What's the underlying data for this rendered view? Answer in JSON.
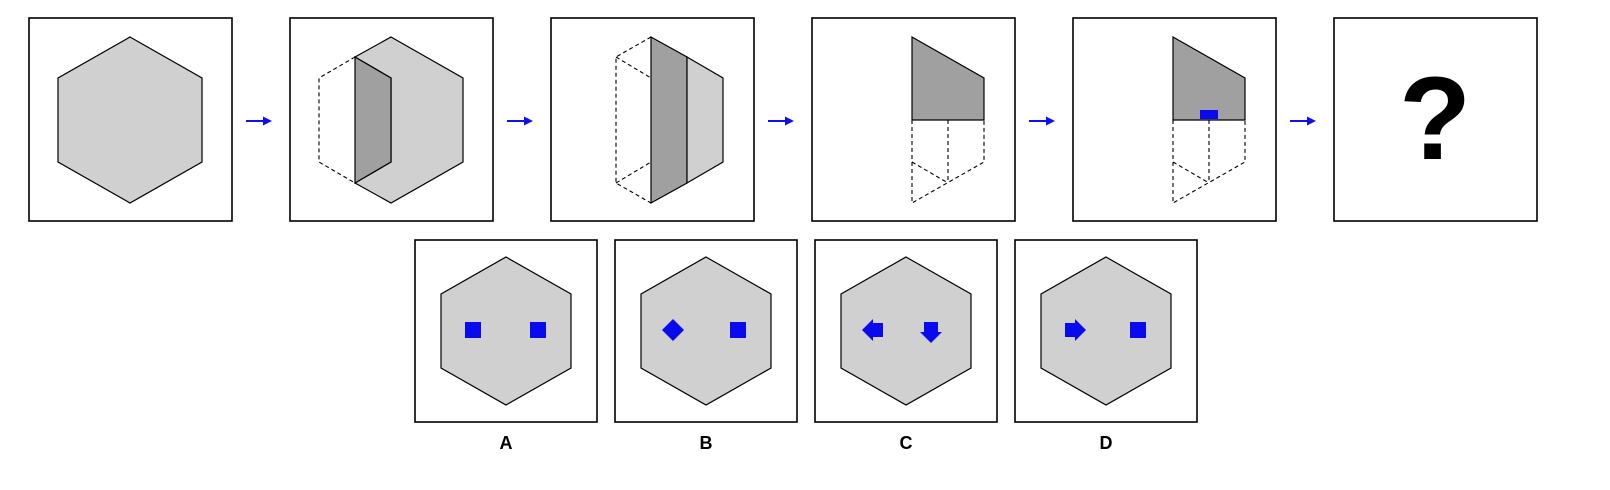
{
  "sequence": {
    "question_mark": "?"
  },
  "options": [
    {
      "label": "A",
      "left_mark": "square",
      "right_mark": "square"
    },
    {
      "label": "B",
      "left_mark": "diamond",
      "right_mark": "square"
    },
    {
      "label": "C",
      "left_mark": "arrow-left",
      "right_mark": "arrow-down"
    },
    {
      "label": "D",
      "left_mark": "arrow-right",
      "right_mark": "square"
    }
  ],
  "colors": {
    "face_fill": "#d0d0d0",
    "shaded_fill": "#a0a0a0",
    "marker": "#0a0aee",
    "arrow": "#1010ee"
  }
}
